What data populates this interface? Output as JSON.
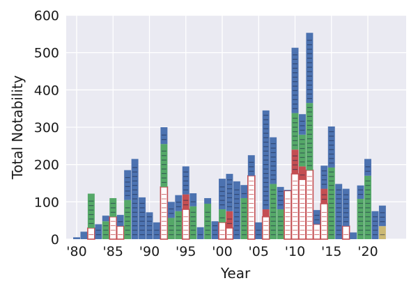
{
  "chart_data": {
    "type": "bar",
    "stacked": true,
    "xlabel": "Year",
    "ylabel": "Total Notability",
    "ylim": [
      0,
      600
    ],
    "y_ticks": [
      0,
      100,
      200,
      300,
      400,
      500,
      600
    ],
    "x_ticks": [
      {
        "year": 1980,
        "label": "'80"
      },
      {
        "year": 1985,
        "label": "'85"
      },
      {
        "year": 1990,
        "label": "'90"
      },
      {
        "year": 1995,
        "label": "'95"
      },
      {
        "year": 2000,
        "label": "'00"
      },
      {
        "year": 2005,
        "label": "'05"
      },
      {
        "year": 2010,
        "label": "'10"
      },
      {
        "year": 2015,
        "label": "'15"
      },
      {
        "year": 2020,
        "label": "'20"
      }
    ],
    "grid": true,
    "background": "#EAEAF2",
    "colors": {
      "blue": "#4C72B0",
      "green": "#55A868",
      "red": "#C44E52",
      "outlined": "#C44E52",
      "gold": "#CCB974"
    },
    "years": [
      1980,
      1981,
      1982,
      1983,
      1984,
      1985,
      1986,
      1987,
      1988,
      1989,
      1990,
      1991,
      1992,
      1993,
      1994,
      1995,
      1996,
      1997,
      1998,
      1999,
      2000,
      2001,
      2002,
      2003,
      2004,
      2005,
      2006,
      2007,
      2008,
      2009,
      2010,
      2011,
      2012,
      2013,
      2014,
      2015,
      2016,
      2017,
      2018,
      2019,
      2020,
      2021,
      2022
    ],
    "series": [
      {
        "segment": "red_outlined",
        "values": [
          0,
          0,
          30,
          0,
          0,
          60,
          35,
          0,
          0,
          0,
          0,
          0,
          140,
          0,
          0,
          80,
          0,
          0,
          0,
          0,
          45,
          30,
          0,
          0,
          170,
          0,
          60,
          0,
          0,
          130,
          175,
          160,
          185,
          40,
          95,
          0,
          0,
          35,
          0,
          0,
          0,
          0,
          0
        ]
      },
      {
        "segment": "red",
        "values": [
          0,
          0,
          0,
          0,
          0,
          0,
          0,
          0,
          0,
          0,
          0,
          0,
          0,
          0,
          0,
          40,
          0,
          0,
          0,
          0,
          0,
          45,
          0,
          0,
          0,
          0,
          20,
          0,
          0,
          0,
          65,
          35,
          0,
          0,
          40,
          0,
          0,
          0,
          0,
          0,
          0,
          0,
          0
        ]
      },
      {
        "segment": "gold",
        "values": [
          0,
          0,
          0,
          0,
          0,
          0,
          0,
          0,
          0,
          0,
          0,
          0,
          0,
          0,
          0,
          0,
          0,
          0,
          0,
          0,
          0,
          0,
          0,
          0,
          0,
          0,
          0,
          0,
          0,
          0,
          0,
          0,
          0,
          0,
          0,
          0,
          0,
          0,
          0,
          0,
          0,
          0,
          35
        ]
      },
      {
        "segment": "green",
        "values": [
          0,
          0,
          92,
          0,
          48,
          50,
          0,
          105,
          0,
          0,
          0,
          0,
          115,
          57,
          75,
          0,
          88,
          0,
          95,
          0,
          35,
          0,
          0,
          110,
          0,
          0,
          0,
          148,
          80,
          0,
          98,
          85,
          180,
          0,
          0,
          192,
          0,
          0,
          0,
          108,
          170,
          0,
          0
        ]
      },
      {
        "segment": "blue",
        "values": [
          5,
          20,
          0,
          40,
          15,
          0,
          30,
          80,
          215,
          112,
          72,
          45,
          45,
          43,
          43,
          75,
          35,
          32,
          15,
          48,
          82,
          100,
          155,
          35,
          55,
          45,
          265,
          125,
          60,
          2,
          175,
          55,
          188,
          38,
          62,
          110,
          148,
          100,
          18,
          36,
          45,
          75,
          55
        ]
      }
    ]
  }
}
